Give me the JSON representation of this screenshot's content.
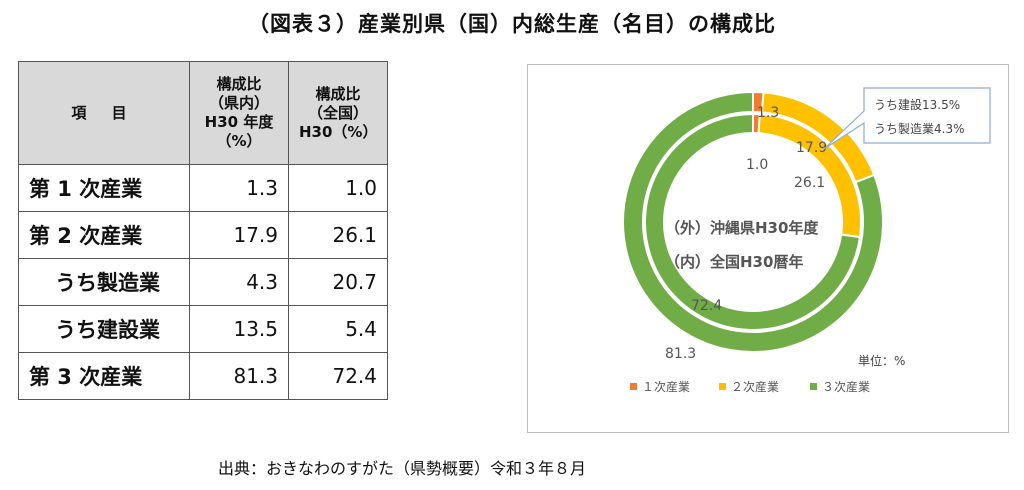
{
  "title": "（図表３）産業別県（国）内総生産（名目）の構成比",
  "table": {
    "headers": {
      "item": "項 目",
      "col1": [
        "構成比",
        "（県内）",
        "H30 年度",
        "（%）"
      ],
      "col2": [
        "構成比",
        "（全国）",
        "H30（%）"
      ]
    },
    "rows": [
      {
        "label": "第 1 次産業",
        "sub": false,
        "pref": "1.3",
        "nat": "1.0"
      },
      {
        "label": "第 2 次産業",
        "sub": false,
        "pref": "17.9",
        "nat": "26.1"
      },
      {
        "label": "うち製造業",
        "sub": true,
        "pref": "4.3",
        "nat": "20.7"
      },
      {
        "label": "うち建設業",
        "sub": true,
        "pref": "13.5",
        "nat": "5.4"
      },
      {
        "label": "第 3 次産業",
        "sub": false,
        "pref": "81.3",
        "nat": "72.4"
      }
    ]
  },
  "chart_data": {
    "type": "pie",
    "variant": "donut-two-ring",
    "center_text": [
      "（外）沖縄県H30年度",
      "（内）全国H30暦年"
    ],
    "unit_note": "単位：%",
    "categories": [
      "１次産業",
      "２次産業",
      "３次産業"
    ],
    "colors": [
      "#ed7d31",
      "#ffc000",
      "#70ad47"
    ],
    "series": [
      {
        "ring": "outer",
        "values": [
          1.3,
          17.9,
          81.3
        ]
      },
      {
        "ring": "inner",
        "values": [
          1.0,
          26.1,
          72.4
        ]
      }
    ],
    "value_labels": {
      "outer": [
        "1.3",
        "17.9",
        "81.3"
      ],
      "inner": [
        "1.0",
        "26.1",
        "72.4"
      ]
    },
    "callout": [
      "うち建設13.5%",
      "うち製造業4.3%"
    ],
    "legend_position": "bottom"
  },
  "source": "出典：おきなわのすがた（県勢概要）令和３年８月"
}
